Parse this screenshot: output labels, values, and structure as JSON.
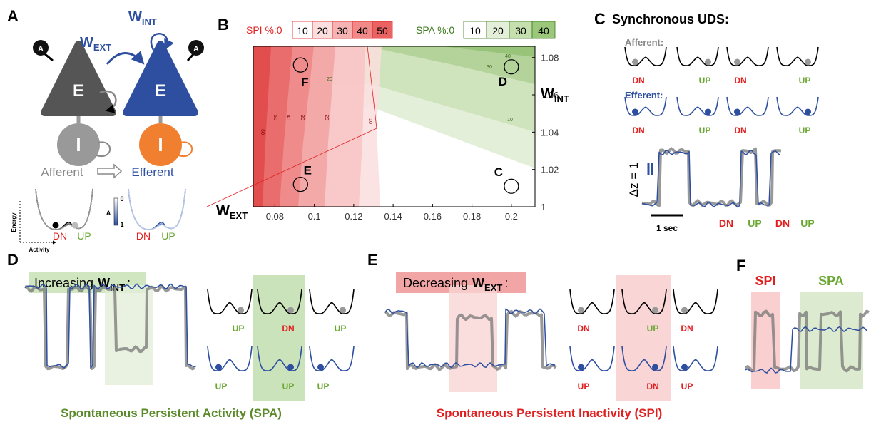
{
  "panel_a": {
    "label": "A",
    "w_ext": {
      "main": "W",
      "sub": "EXT"
    },
    "w_int": {
      "main": "W",
      "sub": "INT"
    },
    "adapt": [
      "A",
      "A"
    ],
    "exc": [
      "E",
      "E"
    ],
    "inh": [
      "I",
      "I"
    ],
    "afferent": "Afferent",
    "efferent": "Efferent",
    "energy": "Energy",
    "activity": "Activity",
    "wells": [
      "DN",
      "UP",
      "DN",
      "UP"
    ],
    "a_axis": {
      "label": "A",
      "top": 0,
      "bottom": 1
    }
  },
  "panel_b": {
    "label": "B",
    "spi_legend": {
      "title": "SPI %:0",
      "levels": [
        10,
        20,
        30,
        40,
        50
      ]
    },
    "spa_legend": {
      "title": "SPA %:0",
      "levels": [
        10,
        20,
        30,
        40
      ]
    },
    "x_label": {
      "main": "W",
      "sub": "EXT"
    },
    "y_label": {
      "main": "W",
      "sub": "INT"
    },
    "xlim": [
      0.069,
      0.212
    ],
    "ylim": [
      1,
      1.086
    ],
    "xticks": [
      0.08,
      0.1,
      0.12,
      0.14,
      0.16,
      0.18,
      0.2
    ],
    "yticks": [
      1,
      1.02,
      1.04,
      1.06,
      1.08
    ],
    "points": [
      {
        "label": "F",
        "x": 0.093,
        "y": 1.076
      },
      {
        "label": "D",
        "x": 0.2,
        "y": 1.075
      },
      {
        "label": "E",
        "x": 0.093,
        "y": 1.012
      },
      {
        "label": "C",
        "x": 0.2,
        "y": 1.011
      }
    ],
    "spi_contour_labels": [
      60,
      50,
      40,
      30,
      20,
      10
    ],
    "spa_contour_labels": [
      40,
      30,
      20,
      10
    ]
  },
  "panel_c": {
    "label": "C",
    "title": "Synchronous UDS:",
    "afferent": "Afferent:",
    "efferent": "Efferent:",
    "afferent_states": [
      "DN",
      "UP",
      "DN",
      "UP"
    ],
    "efferent_states": [
      "DN",
      "UP",
      "DN",
      "UP"
    ],
    "scale_label": "Δz = 1",
    "time_label": "1 sec",
    "trace_states": [
      "DN",
      "UP",
      "DN",
      "UP"
    ]
  },
  "panel_d": {
    "label": "D",
    "heading": {
      "text": "Increasing",
      "w": "W",
      "sub": "INT",
      "colon": ":"
    },
    "top_states": [
      "UP",
      "DN",
      "UP"
    ],
    "bottom_states": [
      "UP",
      "UP",
      "UP"
    ],
    "caption": "Spontaneous Persistent Activity (SPA)"
  },
  "panel_e": {
    "label": "E",
    "heading": {
      "text": "Decreasing",
      "w": "W",
      "sub": "EXT",
      "colon": ":"
    },
    "top_states": [
      "DN",
      "UP",
      "DN"
    ],
    "bottom_states": [
      "UP",
      "DN",
      "UP"
    ],
    "caption": "Spontaneous Persistent Inactivity (SPI)"
  },
  "panel_f": {
    "label": "F",
    "spi": "SPI",
    "spa": "SPA"
  }
}
